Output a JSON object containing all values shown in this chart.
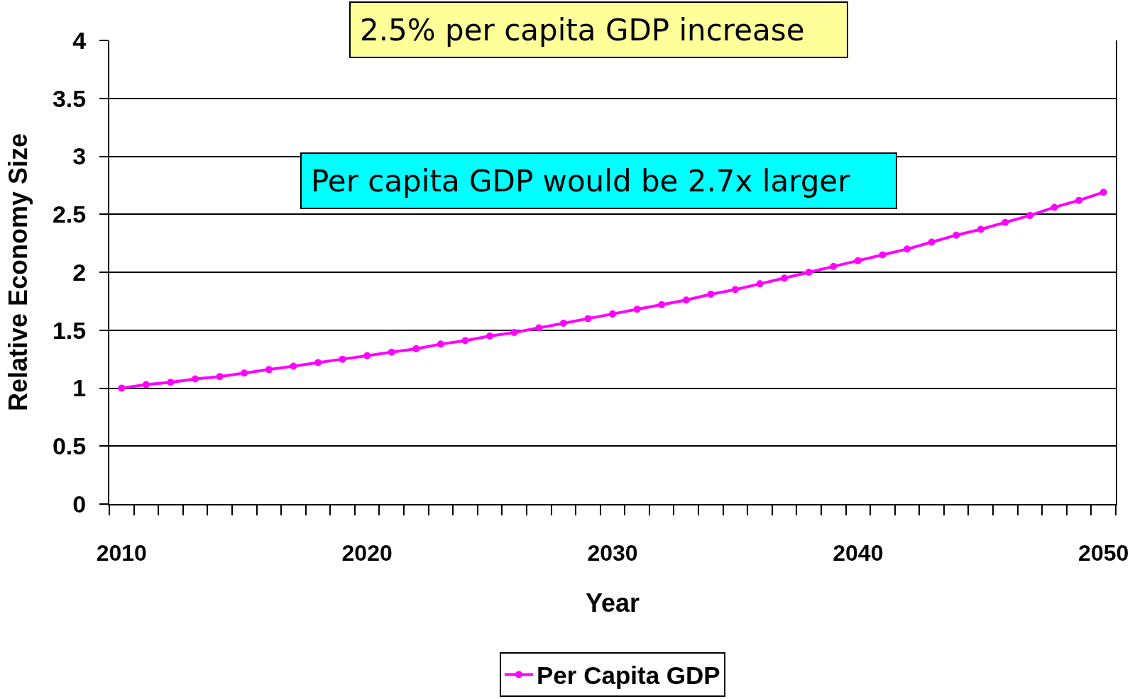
{
  "chart_data": {
    "type": "line",
    "xlabel": "Year",
    "ylabel": "Relative Economy Size",
    "categories": [
      "2010",
      null,
      null,
      null,
      null,
      null,
      null,
      null,
      null,
      null,
      "2020",
      null,
      null,
      null,
      null,
      null,
      null,
      null,
      null,
      null,
      "2030",
      null,
      null,
      null,
      null,
      null,
      null,
      null,
      null,
      null,
      "2040",
      null,
      null,
      null,
      null,
      null,
      null,
      null,
      null,
      null,
      "2050"
    ],
    "series": [
      {
        "name": "Per Capita GDP",
        "color": "#ff00ff",
        "values": [
          1.0,
          1.03,
          1.05,
          1.08,
          1.1,
          1.13,
          1.16,
          1.19,
          1.22,
          1.25,
          1.28,
          1.31,
          1.34,
          1.38,
          1.41,
          1.45,
          1.48,
          1.52,
          1.56,
          1.6,
          1.64,
          1.68,
          1.72,
          1.76,
          1.81,
          1.85,
          1.9,
          1.95,
          2.0,
          2.05,
          2.1,
          2.15,
          2.2,
          2.26,
          2.32,
          2.37,
          2.43,
          2.49,
          2.56,
          2.62,
          2.69
        ]
      }
    ],
    "ylim": [
      0,
      4
    ],
    "yticks": [
      0,
      0.5,
      1,
      1.5,
      2,
      2.5,
      3,
      3.5,
      4
    ],
    "grid": "y",
    "legend": "bottom",
    "marker": "circle",
    "line_style": "solid",
    "annotations": [
      "2.5% per capita GDP increase",
      "Per capita GDP would be 2.7x larger"
    ]
  }
}
